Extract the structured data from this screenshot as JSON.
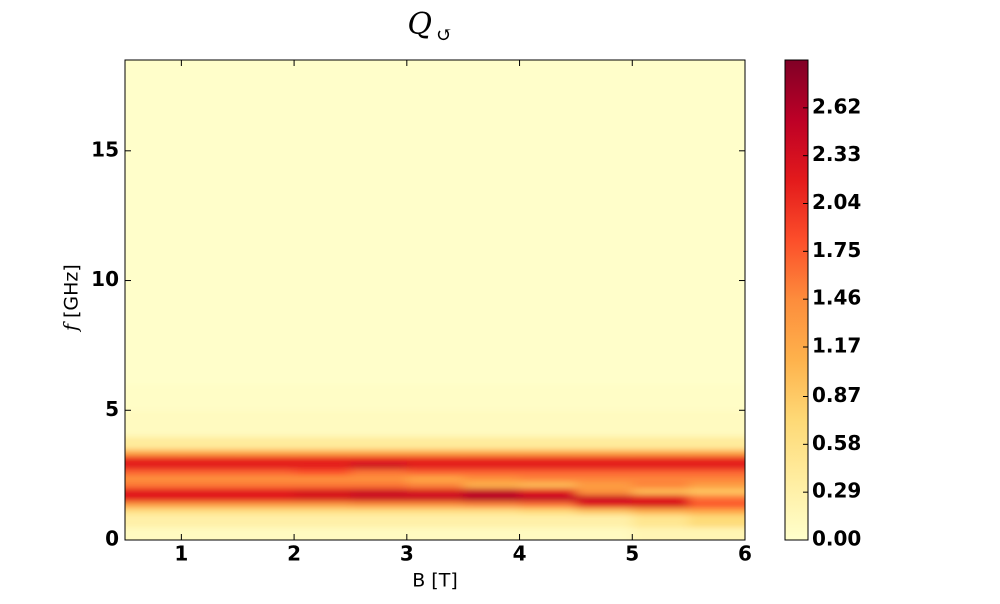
{
  "chart_data": {
    "type": "heatmap",
    "title": "Q",
    "title_subscript": "↺",
    "x_label": "B [T]",
    "y_label_symbol": "f",
    "y_label": "[GHz]",
    "xlim": [
      0.5,
      6
    ],
    "ylim": [
      0,
      18.5
    ],
    "xticks": [
      1,
      2,
      3,
      4,
      5,
      6
    ],
    "yticks": [
      0,
      5,
      10,
      15
    ],
    "xbins": [
      0.5,
      1,
      1.5,
      2,
      2.5,
      3,
      3.5,
      4,
      4.5,
      5,
      5.5,
      6
    ],
    "ybins": [
      0,
      0.5,
      1,
      1.25,
      1.5,
      1.75,
      2,
      2.25,
      2.5,
      2.75,
      3,
      3.25,
      3.5,
      4,
      5,
      6,
      18.5
    ],
    "values": [
      [
        0.1,
        0.1,
        0.1,
        0.1,
        0.1,
        0.1,
        0.1,
        0.1,
        0.1,
        0.2,
        0.2
      ],
      [
        0.3,
        0.3,
        0.3,
        0.3,
        0.3,
        0.3,
        0.3,
        0.3,
        0.3,
        0.5,
        0.7
      ],
      [
        0.6,
        0.6,
        0.6,
        0.6,
        0.6,
        0.6,
        0.6,
        0.7,
        0.9,
        1.1,
        1.2
      ],
      [
        1.3,
        1.3,
        1.3,
        1.3,
        1.4,
        1.4,
        1.5,
        1.6,
        2.2,
        2.3,
        1.8
      ],
      [
        2.2,
        2.2,
        2.2,
        2.3,
        2.4,
        2.4,
        2.6,
        2.5,
        2.4,
        2.2,
        1.6
      ],
      [
        2.2,
        2.2,
        2.2,
        2.3,
        2.4,
        2.3,
        2.5,
        2.2,
        1.4,
        1.0,
        0.9
      ],
      [
        1.6,
        1.6,
        1.6,
        1.6,
        1.6,
        1.5,
        1.1,
        1.0,
        1.3,
        1.5,
        1.3
      ],
      [
        1.4,
        1.4,
        1.4,
        1.4,
        1.4,
        1.2,
        1.4,
        1.5,
        1.5,
        1.5,
        1.5
      ],
      [
        1.7,
        1.7,
        1.7,
        1.8,
        1.6,
        1.7,
        1.7,
        1.7,
        1.7,
        1.7,
        1.7
      ],
      [
        2.2,
        2.2,
        2.2,
        2.2,
        2.4,
        2.2,
        2.2,
        2.2,
        2.2,
        2.2,
        2.2
      ],
      [
        2.1,
        2.1,
        2.1,
        2.1,
        2.1,
        2.1,
        2.1,
        2.1,
        2.1,
        2.1,
        2.1
      ],
      [
        1.2,
        1.2,
        1.2,
        1.2,
        1.2,
        1.2,
        1.2,
        1.2,
        1.2,
        1.2,
        1.2
      ],
      [
        0.4,
        0.4,
        0.4,
        0.4,
        0.4,
        0.4,
        0.4,
        0.4,
        0.4,
        0.4,
        0.4
      ],
      [
        0.1,
        0.1,
        0.1,
        0.1,
        0.1,
        0.1,
        0.1,
        0.1,
        0.1,
        0.1,
        0.1
      ],
      [
        0.05,
        0.05,
        0.05,
        0.05,
        0.05,
        0.05,
        0.05,
        0.05,
        0.05,
        0.05,
        0.05
      ],
      [
        0.02,
        0.02,
        0.02,
        0.02,
        0.02,
        0.02,
        0.02,
        0.02,
        0.02,
        0.02,
        0.02
      ]
    ],
    "clim": [
      0,
      2.91
    ],
    "cticks": [
      {
        "value": 0,
        "label": "0.00"
      },
      {
        "value": 0.29,
        "label": "0.29"
      },
      {
        "value": 0.58,
        "label": "0.58"
      },
      {
        "value": 0.87,
        "label": "0.87"
      },
      {
        "value": 1.17,
        "label": "1.17"
      },
      {
        "value": 1.46,
        "label": "1.46"
      },
      {
        "value": 1.75,
        "label": "1.75"
      },
      {
        "value": 2.04,
        "label": "2.04"
      },
      {
        "value": 2.33,
        "label": "2.33"
      },
      {
        "value": 2.62,
        "label": "2.62"
      }
    ],
    "colormap": [
      "#ffffcc",
      "#ffeda0",
      "#fed976",
      "#feb24c",
      "#fd8d3c",
      "#fc4e2a",
      "#e31a1c",
      "#bd0026",
      "#800026"
    ]
  }
}
